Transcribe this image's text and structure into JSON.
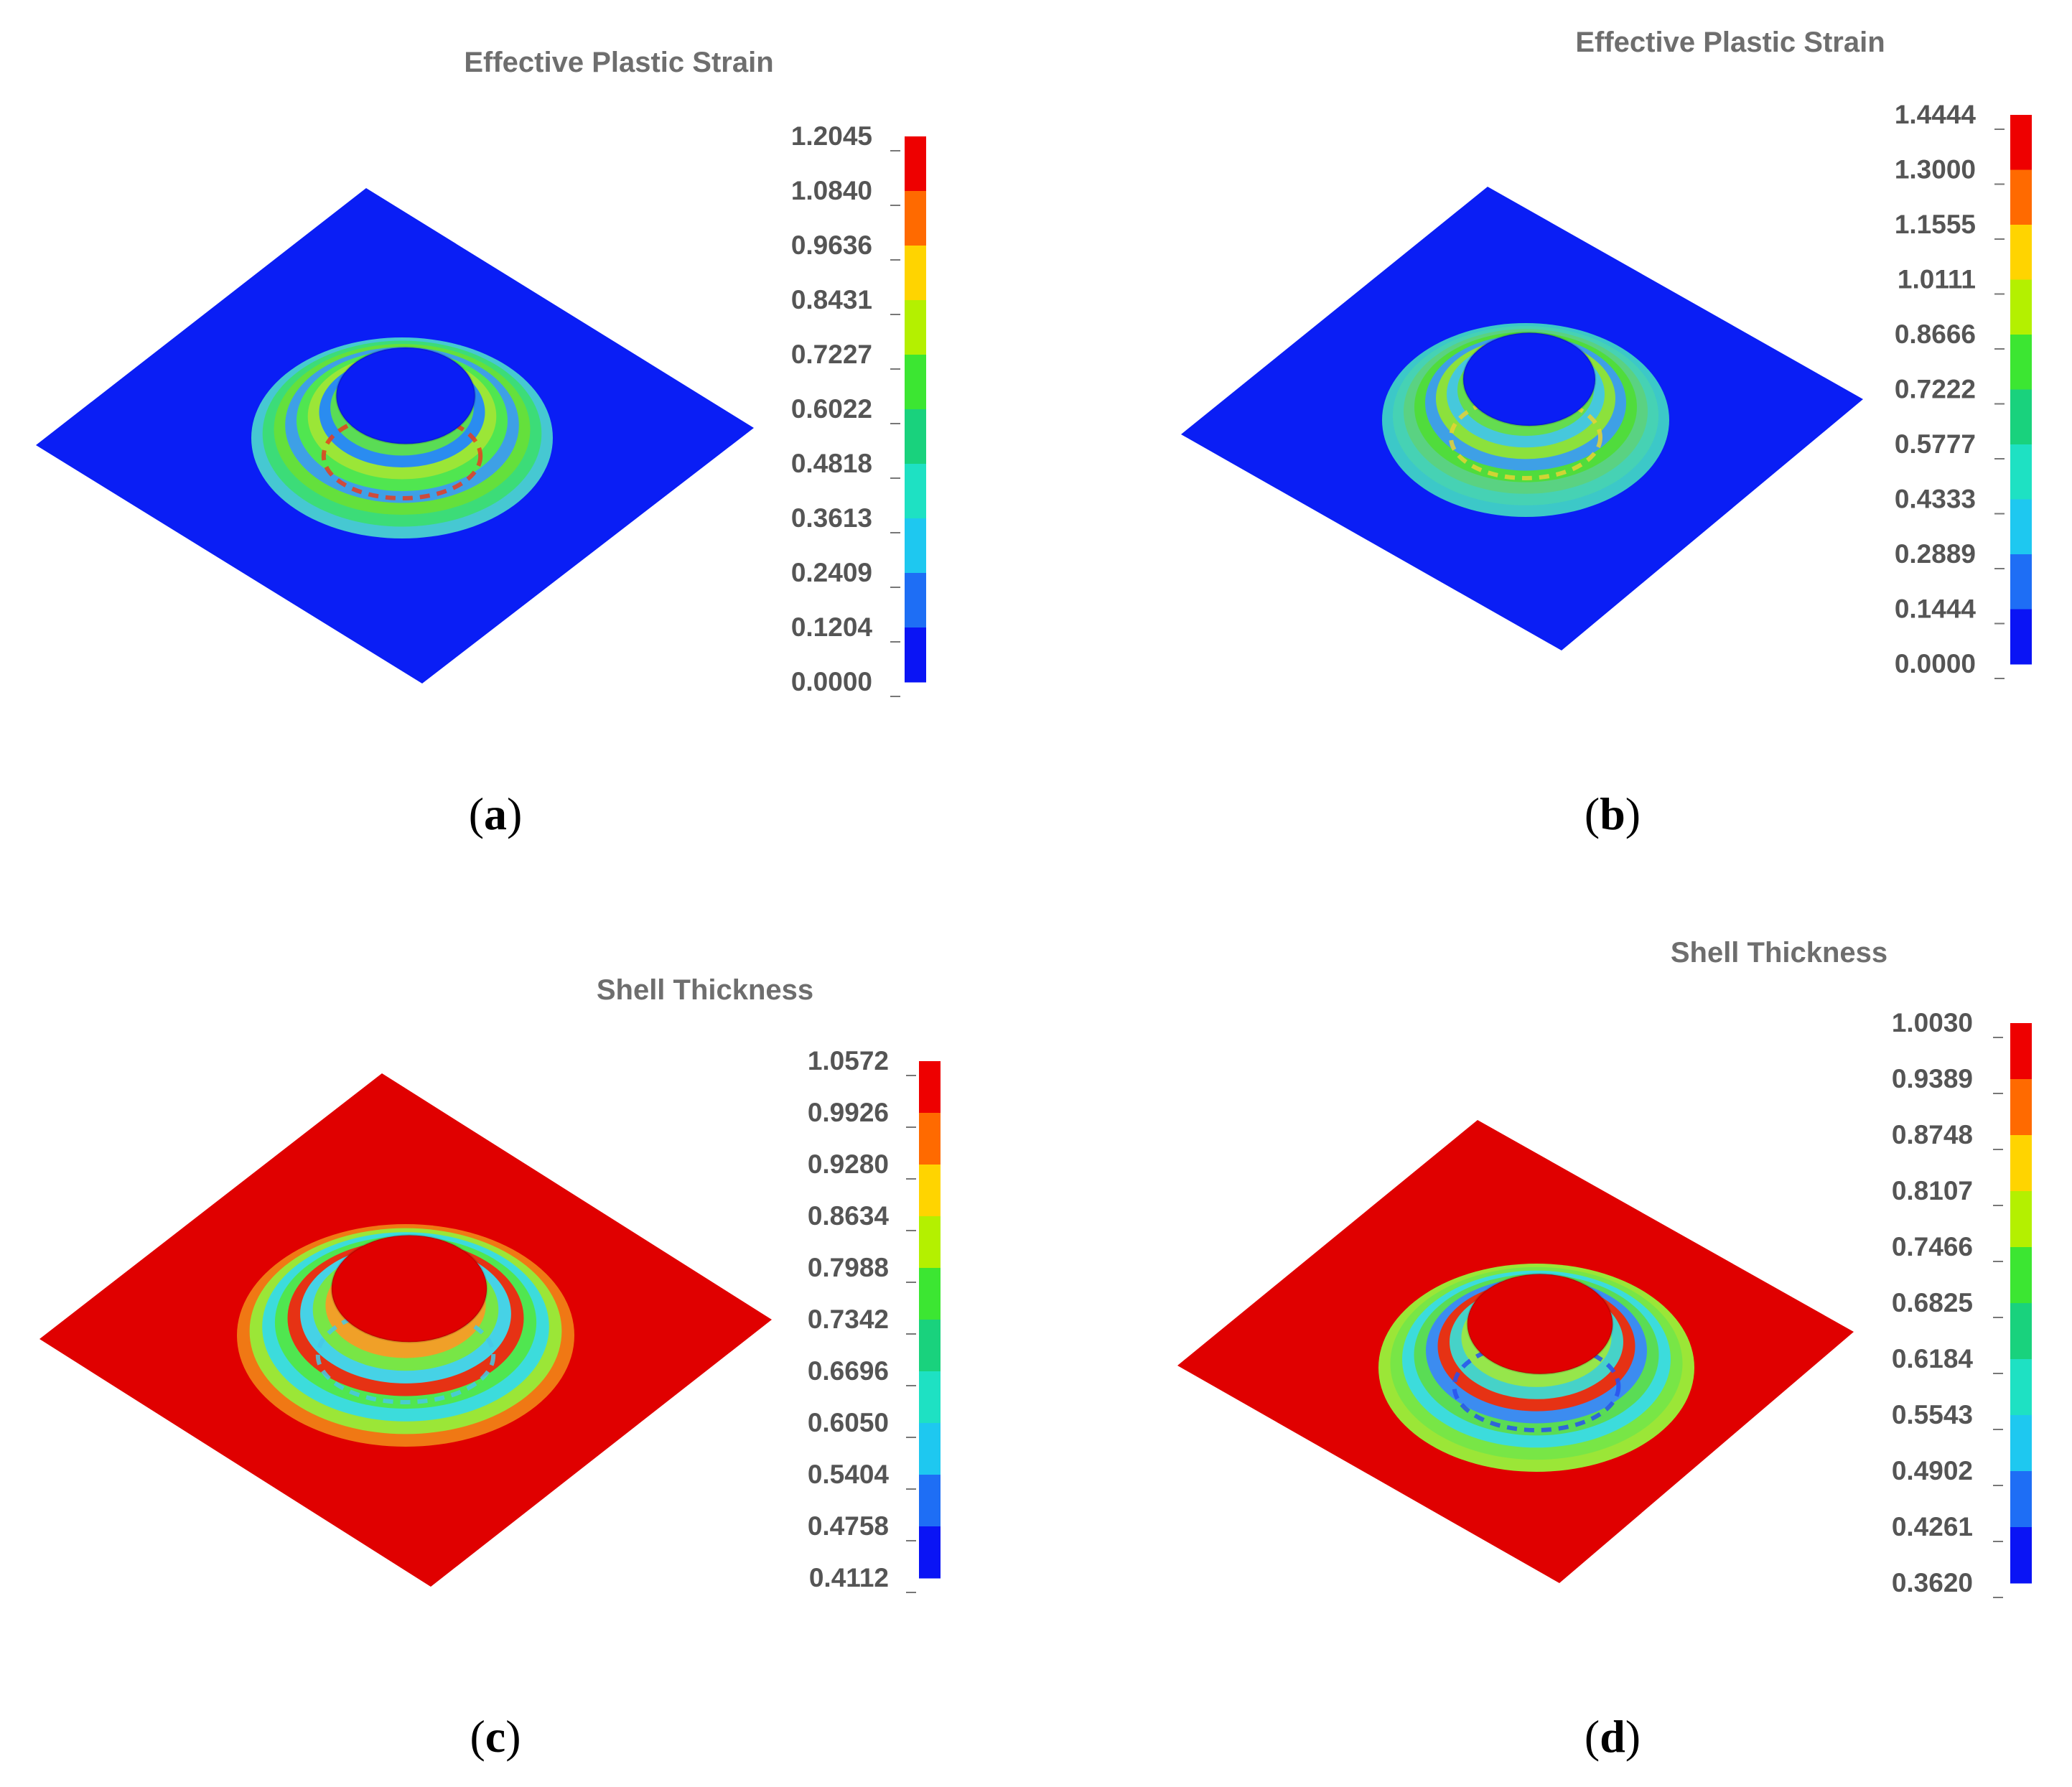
{
  "panels": [
    {
      "id": "a",
      "title": "Effective Plastic Strain",
      "caption_letter": "a",
      "legend_values": [
        "1.2045",
        "1.0840",
        "0.9636",
        "0.8431",
        "0.7227",
        "0.6022",
        "0.4818",
        "0.3613",
        "0.2409",
        "0.1204",
        "0.0000"
      ],
      "plate_color": "#0a1ef5",
      "center_color": "#0a1ef5",
      "ring_colors": [
        "#46c8d2",
        "#3cdc78",
        "#64e03c",
        "#3ea0e6",
        "#50e650",
        "#9be637",
        "#2a8cf0",
        "#5adc55"
      ],
      "accent_color": "#e63c1e"
    },
    {
      "id": "b",
      "title": "Effective Plastic Strain",
      "caption_letter": "b",
      "legend_values": [
        "1.4444",
        "1.3000",
        "1.1555",
        "1.0111",
        "0.8666",
        "0.7222",
        "0.5777",
        "0.4333",
        "0.2889",
        "0.1444",
        "0.0000"
      ],
      "plate_color": "#0a1ef5",
      "center_color": "#0a1ef5",
      "ring_colors": [
        "#3cc8c8",
        "#46d2b4",
        "#5ad282",
        "#50dc3c",
        "#3ea0e6",
        "#8ce13c",
        "#46c8dc",
        "#64dc50"
      ],
      "accent_color": "#e6d232"
    },
    {
      "id": "c",
      "title": "Shell Thickness",
      "caption_letter": "c",
      "legend_values": [
        "1.0572",
        "0.9926",
        "0.9280",
        "0.8634",
        "0.7988",
        "0.7342",
        "0.6696",
        "0.6050",
        "0.5404",
        "0.4758",
        "0.4112"
      ],
      "plate_color": "#e00000",
      "center_color": "#e00000",
      "ring_colors": [
        "#f07814",
        "#9be637",
        "#3cdcdc",
        "#50e650",
        "#e63214",
        "#46d2e6",
        "#78e646",
        "#f0a028"
      ],
      "accent_color": "#46c8e6"
    },
    {
      "id": "d",
      "title": "Shell Thickness",
      "caption_letter": "d",
      "legend_values": [
        "1.0030",
        "0.9389",
        "0.8748",
        "0.8107",
        "0.7466",
        "0.6825",
        "0.6184",
        "0.5543",
        "0.4902",
        "0.4261",
        "0.3620"
      ],
      "plate_color": "#e00000",
      "center_color": "#e00000",
      "ring_colors": [
        "#9be637",
        "#78e646",
        "#3cdcdc",
        "#5adc55",
        "#3c8cf0",
        "#e63214",
        "#46d2c8",
        "#96e64b"
      ],
      "accent_color": "#2850f0"
    }
  ],
  "colorbar_colors": [
    "#ee0000",
    "#ff6a00",
    "#ffd400",
    "#b4f000",
    "#3ce632",
    "#19d27d",
    "#1ee1c3",
    "#1ec8f0",
    "#1e6ef5",
    "#0a14f5"
  ]
}
